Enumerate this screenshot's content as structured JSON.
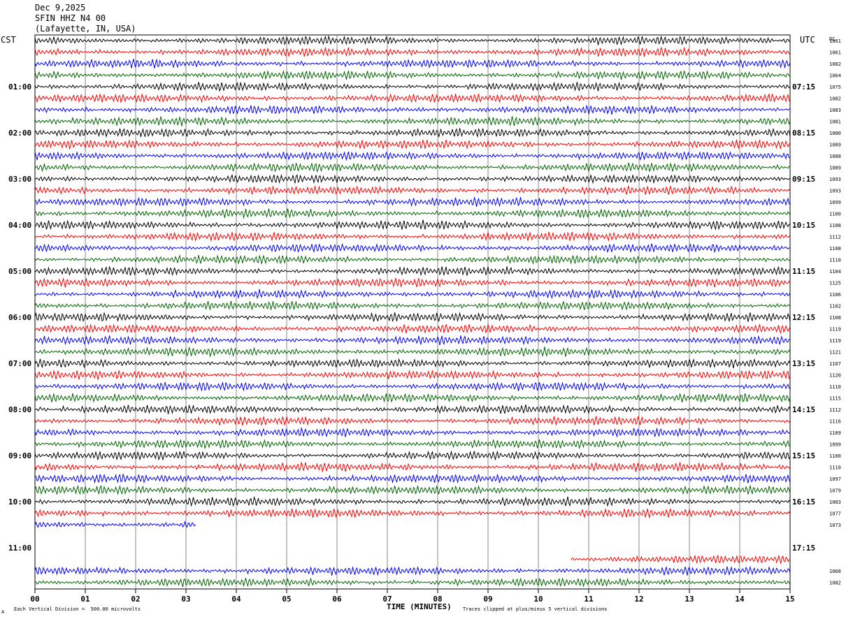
{
  "header": {
    "date": "Dec 9,2025",
    "station": "SFIN HHZ N4 00",
    "location": "(Lafayette, IN, USA)"
  },
  "left_tz": "CST",
  "right_tz": "UTC",
  "right_col_header": "DC",
  "footer": {
    "xlabel": "TIME (MINUTES)",
    "scale_note": "Each Vertical Division =  500.00 microvolts",
    "clip_note": "Traces clipped at plus/minus 5 vertical divisions",
    "corner_mark": "A"
  },
  "chart_data": {
    "type": "line",
    "xlabel": "TIME (MINUTES)",
    "xlim": [
      0,
      15
    ],
    "x_ticks": [
      "00",
      "01",
      "02",
      "03",
      "04",
      "05",
      "06",
      "07",
      "08",
      "09",
      "10",
      "11",
      "12",
      "13",
      "14",
      "15"
    ],
    "trace_colors": [
      "#000000",
      "#ff0000",
      "#0000ff",
      "#006400"
    ],
    "left_hour_labels": [
      "01:00",
      "02:00",
      "03:00",
      "04:00",
      "05:00",
      "06:00",
      "07:00",
      "08:00",
      "09:00",
      "10:00",
      "11:00"
    ],
    "right_hour_labels": [
      "07:15",
      "08:15",
      "09:15",
      "10:15",
      "11:15",
      "12:15",
      "13:15",
      "14:15",
      "15:15",
      "16:15",
      "17:15"
    ],
    "grid": true,
    "traces": [
      {
        "row": 0,
        "dc": "1061",
        "start": 0,
        "end": 15
      },
      {
        "row": 1,
        "dc": "1061",
        "start": 0,
        "end": 15
      },
      {
        "row": 2,
        "dc": "1082",
        "start": 0,
        "end": 15
      },
      {
        "row": 3,
        "dc": "1064",
        "start": 0,
        "end": 15
      },
      {
        "row": 4,
        "dc": "1075",
        "start": 0,
        "end": 15
      },
      {
        "row": 5,
        "dc": "1082",
        "start": 0,
        "end": 15
      },
      {
        "row": 6,
        "dc": "1083",
        "start": 0,
        "end": 15
      },
      {
        "row": 7,
        "dc": "1081",
        "start": 0,
        "end": 15
      },
      {
        "row": 8,
        "dc": "1080",
        "start": 0,
        "end": 15
      },
      {
        "row": 9,
        "dc": "1089",
        "start": 0,
        "end": 15
      },
      {
        "row": 10,
        "dc": "1088",
        "start": 0,
        "end": 15
      },
      {
        "row": 11,
        "dc": "1089",
        "start": 0,
        "end": 15
      },
      {
        "row": 12,
        "dc": "1093",
        "start": 0,
        "end": 15
      },
      {
        "row": 13,
        "dc": "1093",
        "start": 0,
        "end": 15
      },
      {
        "row": 14,
        "dc": "1099",
        "start": 0,
        "end": 15
      },
      {
        "row": 15,
        "dc": "1100",
        "start": 0,
        "end": 15
      },
      {
        "row": 16,
        "dc": "1108",
        "start": 0,
        "end": 15
      },
      {
        "row": 17,
        "dc": "1112",
        "start": 0,
        "end": 15
      },
      {
        "row": 18,
        "dc": "1108",
        "start": 0,
        "end": 15
      },
      {
        "row": 19,
        "dc": "1110",
        "start": 0,
        "end": 15
      },
      {
        "row": 20,
        "dc": "1104",
        "start": 0,
        "end": 15
      },
      {
        "row": 21,
        "dc": "1125",
        "start": 0,
        "end": 15
      },
      {
        "row": 22,
        "dc": "1106",
        "start": 0,
        "end": 15
      },
      {
        "row": 23,
        "dc": "1102",
        "start": 0,
        "end": 15
      },
      {
        "row": 24,
        "dc": "1108",
        "start": 0,
        "end": 15
      },
      {
        "row": 25,
        "dc": "1119",
        "start": 0,
        "end": 15
      },
      {
        "row": 26,
        "dc": "1119",
        "start": 0,
        "end": 15
      },
      {
        "row": 27,
        "dc": "1121",
        "start": 0,
        "end": 15
      },
      {
        "row": 28,
        "dc": "1107",
        "start": 0,
        "end": 15
      },
      {
        "row": 29,
        "dc": "1120",
        "start": 0,
        "end": 15
      },
      {
        "row": 30,
        "dc": "1110",
        "start": 0,
        "end": 15
      },
      {
        "row": 31,
        "dc": "1115",
        "start": 0,
        "end": 15
      },
      {
        "row": 32,
        "dc": "1112",
        "start": 0,
        "end": 15
      },
      {
        "row": 33,
        "dc": "1116",
        "start": 0,
        "end": 15
      },
      {
        "row": 34,
        "dc": "1109",
        "start": 0,
        "end": 15
      },
      {
        "row": 35,
        "dc": "1099",
        "start": 0,
        "end": 15
      },
      {
        "row": 36,
        "dc": "1100",
        "start": 0,
        "end": 15
      },
      {
        "row": 37,
        "dc": "1110",
        "start": 0,
        "end": 15
      },
      {
        "row": 38,
        "dc": "1097",
        "start": 0,
        "end": 15
      },
      {
        "row": 39,
        "dc": "1079",
        "start": 0,
        "end": 15
      },
      {
        "row": 40,
        "dc": "1083",
        "start": 0,
        "end": 15
      },
      {
        "row": 41,
        "dc": "1077",
        "start": 0,
        "end": 15
      },
      {
        "row": 42,
        "dc": "1073",
        "start": 0,
        "end": 3.2
      },
      {
        "row": 45,
        "dc": "",
        "start": 10.65,
        "end": 15
      },
      {
        "row": 46,
        "dc": "1068",
        "start": 0,
        "end": 15
      },
      {
        "row": 47,
        "dc": "1082",
        "start": 0,
        "end": 15
      }
    ]
  }
}
